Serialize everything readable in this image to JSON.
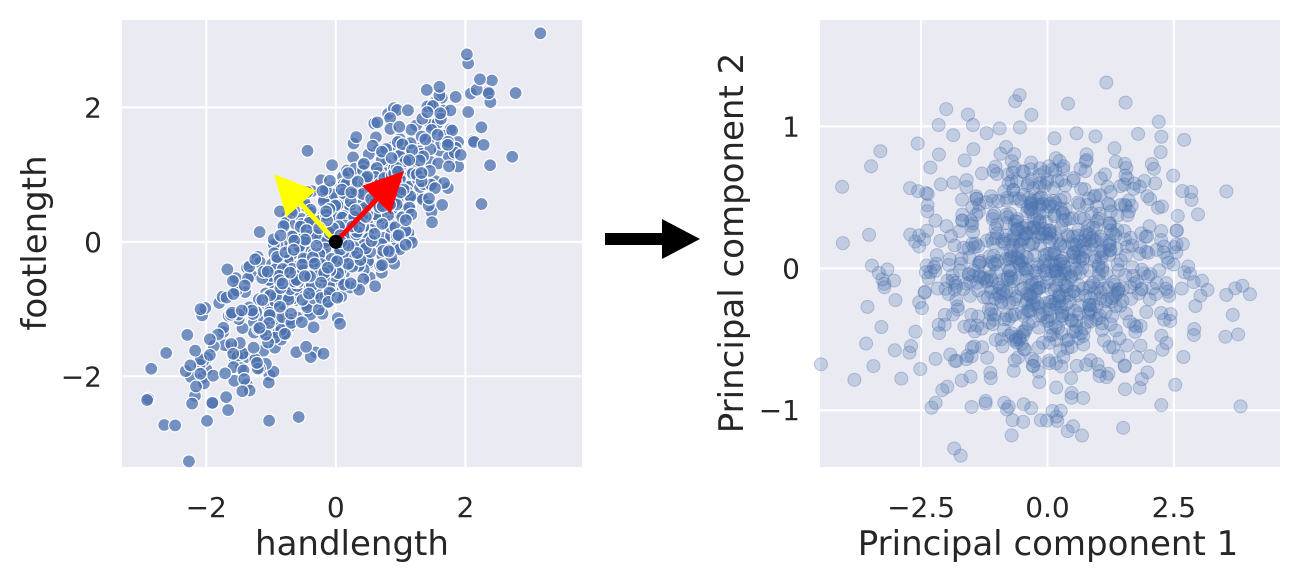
{
  "chart_data": [
    {
      "type": "scatter",
      "title": "",
      "xlabel": "handlength",
      "ylabel": "footlength",
      "xlim": [
        -3.3,
        3.8
      ],
      "ylim": [
        -3.35,
        3.3
      ],
      "xticks": [
        -2,
        0,
        2
      ],
      "yticks": [
        -2,
        0,
        2
      ],
      "xtick_labels": [
        "−2",
        "0",
        "2"
      ],
      "ytick_labels": [
        "−2",
        "0",
        "2"
      ],
      "grid": true,
      "background": "#eaeaf2",
      "point_color": "#4c72b0",
      "n_points": 900,
      "correlation": 0.85,
      "mean": [
        0,
        0
      ],
      "arrows": [
        {
          "from": [
            0,
            0
          ],
          "to": [
            1.0,
            1.0
          ],
          "color": "#ff0000"
        },
        {
          "from": [
            0,
            0
          ],
          "to": [
            -0.9,
            0.95
          ],
          "color": "#ffff00"
        }
      ],
      "center_point": {
        "x": 0,
        "y": 0,
        "color": "#000000"
      }
    },
    {
      "type": "scatter",
      "title": "",
      "xlabel": "Principal component 1",
      "ylabel": "Principal component 2",
      "xlim": [
        -4.5,
        4.6
      ],
      "ylim": [
        -1.4,
        1.75
      ],
      "xticks": [
        -2.5,
        0.0,
        2.5
      ],
      "yticks": [
        -1,
        0,
        1
      ],
      "xtick_labels": [
        "−2.5",
        "0.0",
        "2.5"
      ],
      "ytick_labels": [
        "−1",
        "0",
        "1"
      ],
      "grid": true,
      "background": "#eaeaf2",
      "point_color": "#4c72b0",
      "point_alpha": 0.25,
      "n_points": 900,
      "x_sd": 1.35,
      "y_sd": 0.45
    }
  ],
  "arrow_between_plots": {
    "color": "#000000",
    "direction": "right"
  }
}
